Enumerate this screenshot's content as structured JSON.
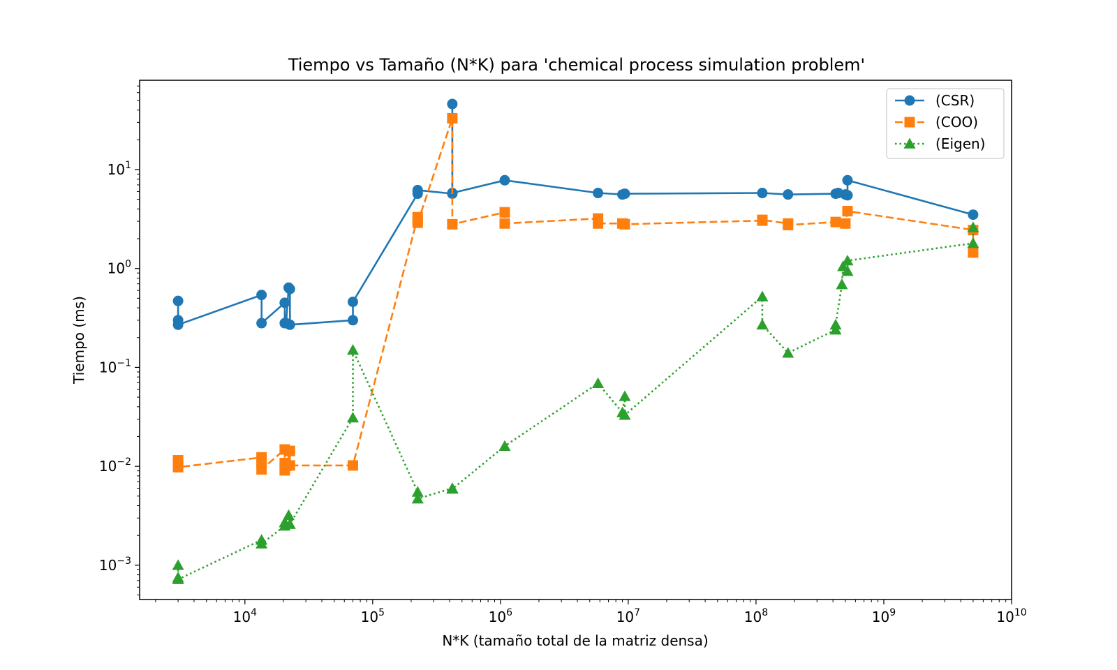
{
  "chart_data": {
    "type": "line",
    "title": "Tiempo vs Tamaño (N*K) para 'chemical process simulation problem'",
    "xlabel": "N*K (tamaño total de la matriz densa)",
    "ylabel": "Tiempo (ms)",
    "xscale": "log",
    "yscale": "log",
    "xlim": [
      1500,
      10000000000
    ],
    "ylim": [
      0.00045,
      80
    ],
    "x_ticks": [
      {
        "value": 10000,
        "base": "10",
        "exp": "4"
      },
      {
        "value": 100000,
        "base": "10",
        "exp": "5"
      },
      {
        "value": 1000000,
        "base": "10",
        "exp": "6"
      },
      {
        "value": 10000000,
        "base": "10",
        "exp": "7"
      },
      {
        "value": 100000000,
        "base": "10",
        "exp": "8"
      },
      {
        "value": 1000000000,
        "base": "10",
        "exp": "9"
      },
      {
        "value": 10000000000,
        "base": "10",
        "exp": "10"
      }
    ],
    "y_ticks": [
      {
        "value": 0.001,
        "base": "10",
        "exp": "−3"
      },
      {
        "value": 0.01,
        "base": "10",
        "exp": "−2"
      },
      {
        "value": 0.1,
        "base": "10",
        "exp": "−1"
      },
      {
        "value": 1,
        "base": "10",
        "exp": "0"
      },
      {
        "value": 10,
        "base": "10",
        "exp": "1"
      }
    ],
    "grid": false,
    "legend_position": "top-right",
    "series": [
      {
        "name": "(CSR)",
        "color": "#1f77b4",
        "marker": "circle",
        "linestyle": "solid",
        "x": [
          3000,
          3000,
          3000,
          13500,
          13500,
          20500,
          20500,
          21000,
          22000,
          22500,
          22500,
          70000,
          70000,
          225000,
          225000,
          225000,
          420000,
          420000,
          420000,
          1080000,
          5800000,
          9000000,
          9400000,
          112000000,
          178000000,
          420000000,
          440000000,
          500000000,
          520000000,
          520000000,
          5000000000
        ],
        "y": [
          0.47,
          0.3,
          0.27,
          0.54,
          0.28,
          0.45,
          0.28,
          0.28,
          0.64,
          0.62,
          0.27,
          0.3,
          0.46,
          5.7,
          6.0,
          6.2,
          5.7,
          46,
          5.8,
          7.8,
          5.8,
          5.6,
          5.7,
          5.8,
          5.6,
          5.7,
          5.8,
          5.6,
          5.5,
          7.8,
          3.5
        ]
      },
      {
        "name": "(COO)",
        "color": "#ff7f0e",
        "marker": "square",
        "linestyle": "dashed",
        "x": [
          3000,
          3000,
          3000,
          13500,
          13500,
          13500,
          20500,
          20500,
          20500,
          21000,
          22500,
          22500,
          70000,
          225000,
          225000,
          225000,
          420000,
          420000,
          1080000,
          1080000,
          5800000,
          5800000,
          9000000,
          9400000,
          112000000,
          112000000,
          178000000,
          178000000,
          420000000,
          500000000,
          520000000,
          5000000000,
          5000000000
        ],
        "y": [
          0.0115,
          0.0105,
          0.0098,
          0.0123,
          0.0111,
          0.0093,
          0.0148,
          0.0108,
          0.0091,
          0.0101,
          0.0143,
          0.0102,
          0.0102,
          3.3,
          3.1,
          2.9,
          33,
          2.8,
          3.7,
          2.85,
          3.2,
          2.85,
          2.85,
          2.8,
          3.05,
          3.1,
          2.85,
          2.75,
          2.95,
          2.85,
          3.8,
          2.45,
          1.45
        ]
      },
      {
        "name": " (Eigen)",
        "color": "#2ca02c",
        "marker": "triangle",
        "linestyle": "dotted",
        "x": [
          3000,
          3000,
          3000,
          13500,
          13500,
          20500,
          20500,
          22000,
          22500,
          70000,
          70000,
          225000,
          225000,
          420000,
          420000,
          1080000,
          5800000,
          9000000,
          9400000,
          9400000,
          112000000,
          112000000,
          178000000,
          420000000,
          420000000,
          470000000,
          480000000,
          520000000,
          520000000,
          5000000000,
          5000000000
        ],
        "y": [
          0.001,
          0.00075,
          0.00072,
          0.0018,
          0.00165,
          0.0025,
          0.0027,
          0.0032,
          0.0026,
          0.031,
          0.15,
          0.0055,
          0.0047,
          0.006,
          0.0059,
          0.016,
          0.069,
          0.035,
          0.051,
          0.033,
          0.52,
          0.27,
          0.14,
          0.24,
          0.27,
          0.69,
          1.05,
          0.94,
          1.2,
          1.8,
          2.6
        ]
      }
    ]
  }
}
